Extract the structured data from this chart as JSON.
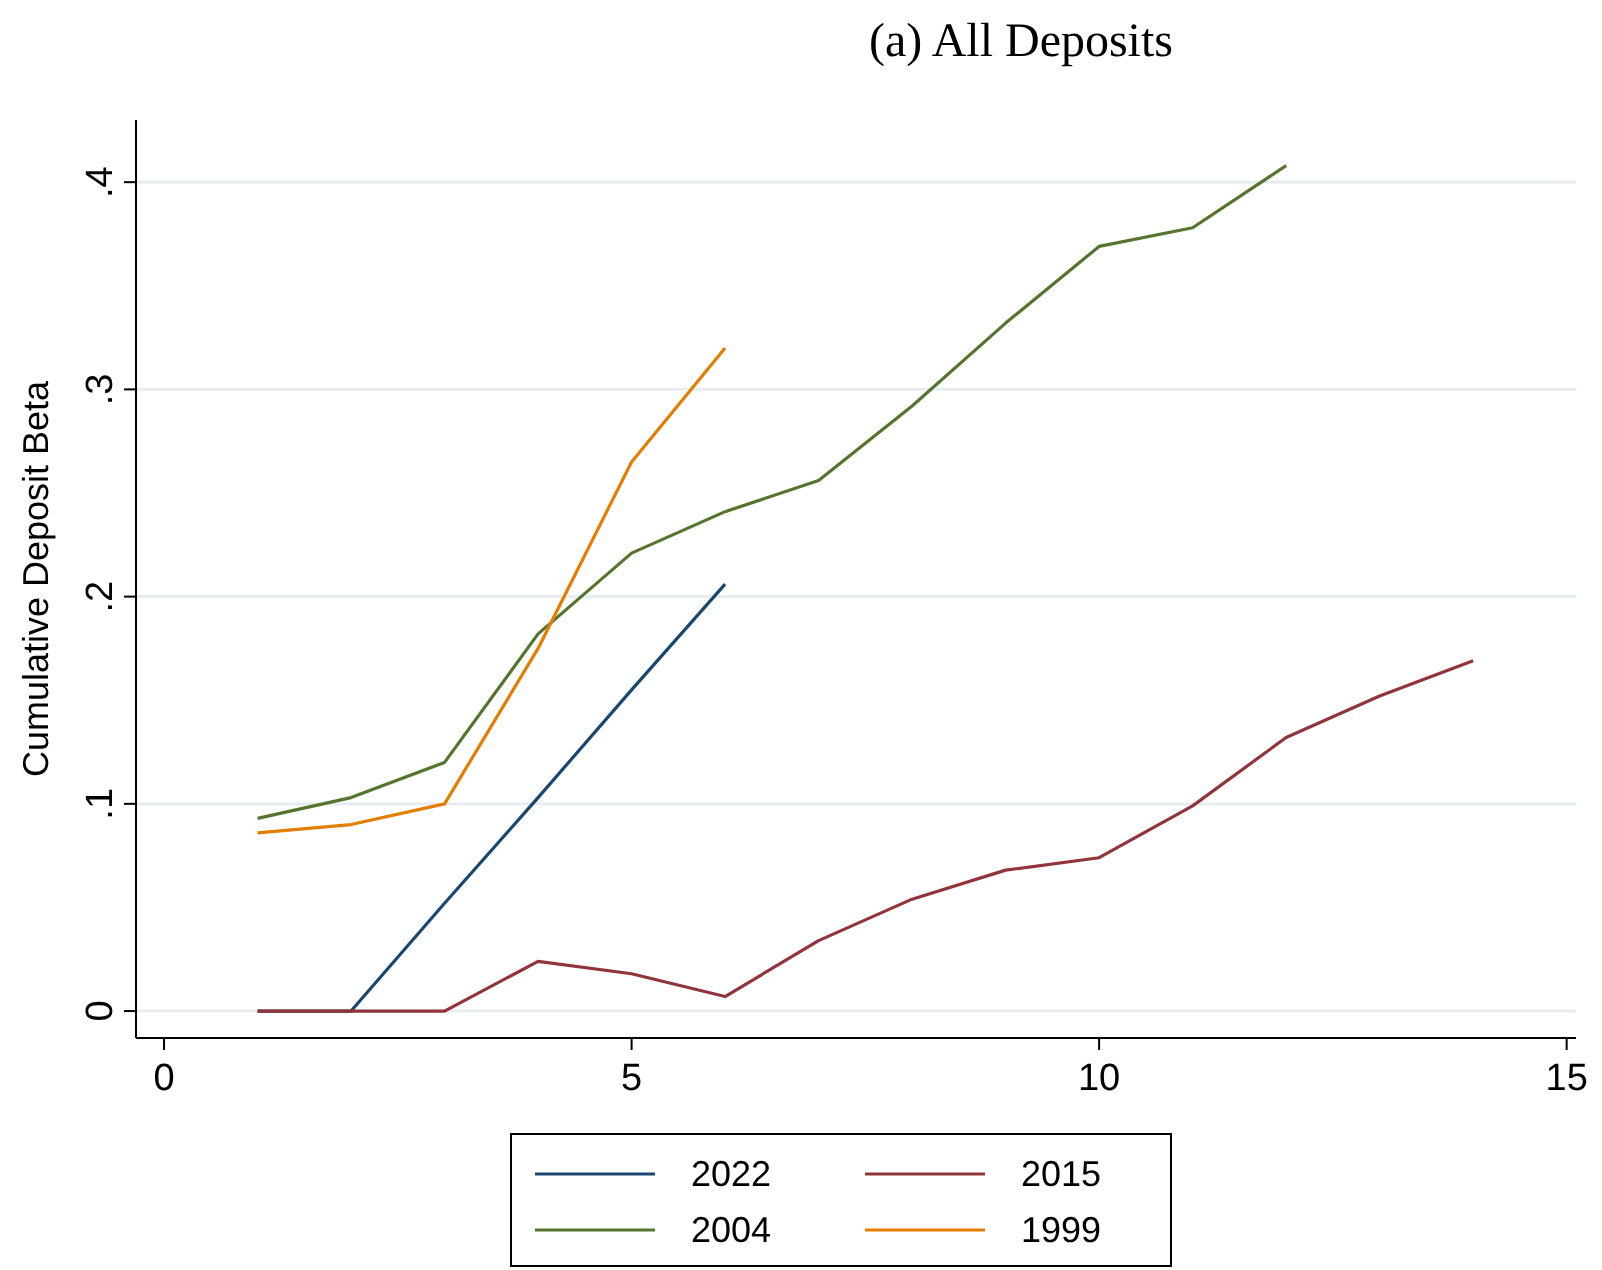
{
  "chart_data": {
    "type": "line",
    "title": "(a) All Deposits",
    "ylabel": "Cumulative Deposit Beta",
    "xlim": [
      -0.3,
      15.1
    ],
    "xticks": [
      0,
      5,
      10,
      15
    ],
    "ylim": [
      -0.013,
      0.43
    ],
    "yticks": [
      {
        "value": 0,
        "label": "0"
      },
      {
        "value": 0.1,
        "label": ".1"
      },
      {
        "value": 0.2,
        "label": ".2"
      },
      {
        "value": 0.3,
        "label": ".3"
      },
      {
        "value": 0.4,
        "label": ".4"
      }
    ],
    "grid": "y",
    "legend": "bottom",
    "marker": "none",
    "line_style": "solid",
    "series": [
      {
        "name": "2022",
        "color": "#1a476f",
        "x": [
          1,
          2,
          3,
          4,
          5,
          6
        ],
        "values": [
          0,
          0,
          0.052,
          0.103,
          0.155,
          0.206
        ]
      },
      {
        "name": "2015",
        "color": "#90353b",
        "x": [
          1,
          2,
          3,
          4,
          5,
          6,
          7,
          8,
          9,
          10,
          11,
          12,
          13,
          14
        ],
        "values": [
          0,
          0,
          0,
          0.024,
          0.018,
          0.007,
          0.034,
          0.054,
          0.068,
          0.074,
          0.099,
          0.132,
          0.152,
          0.169
        ]
      },
      {
        "name": "2004",
        "color": "#55752f",
        "x": [
          1,
          2,
          3,
          4,
          5,
          6,
          7,
          8,
          9,
          10,
          11,
          12
        ],
        "values": [
          0.093,
          0.103,
          0.12,
          0.182,
          0.221,
          0.241,
          0.256,
          0.292,
          0.332,
          0.369,
          0.378,
          0.408
        ]
      },
      {
        "name": "1999",
        "color": "#e37e00",
        "x": [
          1,
          2,
          3,
          4,
          5,
          6
        ],
        "values": [
          0.086,
          0.09,
          0.1,
          0.175,
          0.265,
          0.32
        ]
      }
    ]
  }
}
